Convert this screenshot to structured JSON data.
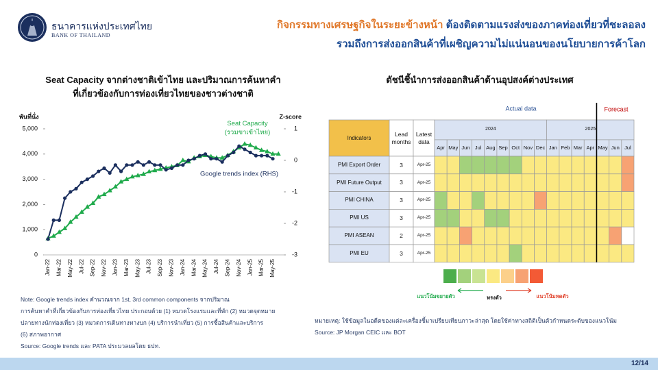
{
  "header": {
    "org_th": "ธนาคารแห่งประเทศไทย",
    "org_en": "BANK OF THAILAND",
    "title_orange": "กิจกรรมทางเศรษฐกิจในระยะข้างหน้า",
    "title_blue": "ต้องติดตามแรงส่งของภาคท่องเที่ยวที่ชะลอลง",
    "title_line2": "รวมถึงการส่งออกสินค้าที่เผชิญความไม่แน่นอนของนโยบายการค้าโลก"
  },
  "chart_data": [
    {
      "type": "line",
      "title": [
        "Seat Capacity จากต่างชาติเข้าไทย และปริมาณการค้นหาคำ",
        "ที่เกี่ยวข้องกับการท่องเที่ยวไทยของชาวต่างชาติ"
      ],
      "ylabel": "พันที่นั่ง",
      "y2label": "Z-score",
      "categories": [
        "Jan-22",
        null,
        "Mar-22",
        null,
        "May-22",
        null,
        "Jul-22",
        null,
        "Sep-22",
        null,
        "Nov-22",
        null,
        "Jan-23",
        null,
        "Mar-23",
        null,
        "May-23",
        null,
        "Jul-23",
        null,
        "Sep-23",
        null,
        "Nov-23",
        null,
        "Jan-24",
        null,
        "Mar-24",
        null,
        "May-24",
        null,
        "Jul-24",
        null,
        "Sep-24",
        null,
        "Nov-24",
        null,
        "Jan-25",
        null,
        "Mar-25",
        null,
        "May-25",
        null
      ],
      "series": [
        {
          "name": "Seat Capacity (รวมขาเข้าไทย)",
          "color": "#1faa4b",
          "marker": "triangle",
          "values": [
            650,
            750,
            900,
            1050,
            1300,
            1500,
            1700,
            1900,
            2050,
            2300,
            2400,
            2550,
            2700,
            2900,
            3000,
            3100,
            3150,
            3200,
            3300,
            3350,
            3400,
            3450,
            3500,
            3550,
            3750,
            3700,
            3850,
            3900,
            3950,
            3900,
            3850,
            3850,
            3950,
            4100,
            4250,
            4400,
            4350,
            4250,
            4150,
            4100,
            4000,
            4000
          ]
        },
        {
          "name": "Google trends index (RHS)",
          "color": "#1b2f5e",
          "marker": "circle",
          "axis": "y2",
          "values": [
            -2.5,
            -1.9,
            -1.9,
            -1.2,
            -1.0,
            -0.9,
            -0.7,
            -0.6,
            -0.5,
            -0.35,
            -0.25,
            -0.4,
            -0.15,
            -0.35,
            -0.15,
            -0.15,
            -0.05,
            -0.15,
            -0.05,
            -0.15,
            -0.15,
            -0.3,
            -0.25,
            -0.15,
            -0.15,
            0.0,
            0.05,
            0.15,
            0.2,
            0.05,
            0.05,
            -0.05,
            0.15,
            0.25,
            0.45,
            0.35,
            0.25,
            0.15,
            0.15,
            0.15,
            0.05,
            null
          ]
        }
      ],
      "ylim": [
        0,
        5000
      ],
      "yticks": [
        0,
        {
          "value": 1000,
          "label": "1,000"
        },
        {
          "value": 2000,
          "label": "2,000"
        },
        {
          "value": 3000,
          "label": "3,000"
        },
        {
          "value": 4000,
          "label": "4,000"
        },
        {
          "value": 5000,
          "label": "5,000"
        }
      ],
      "y2lim": [
        -3,
        1
      ],
      "y2ticks": [
        -3,
        -2,
        -1,
        0,
        1
      ],
      "notes": [
        "Note: Google trends index คำนวณจาก 1st, 3rd common components จากปริมาณ",
        "การค้นหาคำที่เกี่ยวข้องกับการท่องเที่ยวไทย ประกอบด้วย (1) หมวดโรงแรมและที่พัก (2) หมวดจุดหมาย",
        "ปลายทางนักท่องเที่ยว (3) หมวดการเดินทางทางบก (4) บริการนำเที่ยว (5) การซื้อสินค้าและบริการ",
        "(6) สภาพอากาศ",
        "Source: Google trends และ PATA ประมวลผลโดย ธปท."
      ]
    },
    {
      "type": "heatmap",
      "title": "ดัชนีชี้นำการส่งออกสินค้าด้านอุปสงค์ต่างประเทศ",
      "actual_label": "Actual data",
      "forecast_label": "Forecast",
      "actual_until": "Apr-25",
      "columns": [
        "Indicators",
        "Lead months",
        "Latest data"
      ],
      "years": [
        "2024",
        "2025"
      ],
      "months": [
        [
          "Apr",
          "May",
          "Jun",
          "Jul",
          "Aug",
          "Sep",
          "Oct",
          "Nov",
          "Dec"
        ],
        [
          "Jan",
          "Feb",
          "Mar",
          "Apr",
          "May",
          "Jun",
          "Jul"
        ]
      ],
      "level_colors": [
        "#4cae4c",
        "#a3d17c",
        "#c9e393",
        "#fbe982",
        "#fcd08a",
        "#f7a273",
        "#f35a35"
      ],
      "rows": [
        {
          "indicator": "PMI Export Order",
          "lead": 3,
          "latest": "Apr-25",
          "levels": [
            4,
            4,
            2,
            2,
            2,
            2,
            2,
            4,
            4,
            4,
            4,
            4,
            4,
            4,
            4,
            6
          ]
        },
        {
          "indicator": "PMI Future Output",
          "lead": 3,
          "latest": "Apr-25",
          "levels": [
            4,
            4,
            4,
            4,
            4,
            4,
            4,
            4,
            4,
            4,
            4,
            4,
            4,
            4,
            4,
            6
          ]
        },
        {
          "indicator": "PMI CHINA",
          "lead": 3,
          "latest": "Apr-25",
          "levels": [
            2,
            4,
            4,
            2,
            4,
            4,
            4,
            4,
            6,
            4,
            4,
            4,
            4,
            4,
            4,
            4
          ]
        },
        {
          "indicator": "PMI US",
          "lead": 3,
          "latest": "Apr-25",
          "levels": [
            2,
            2,
            4,
            4,
            2,
            2,
            4,
            4,
            4,
            4,
            4,
            4,
            4,
            4,
            4,
            4
          ]
        },
        {
          "indicator": "PMI ASEAN",
          "lead": 2,
          "latest": "Apr-25",
          "levels": [
            4,
            4,
            6,
            4,
            4,
            4,
            4,
            4,
            4,
            4,
            4,
            4,
            4,
            4,
            6,
            null
          ]
        },
        {
          "indicator": "PMI EU",
          "lead": 3,
          "latest": "Apr-25",
          "levels": [
            4,
            4,
            4,
            4,
            4,
            4,
            2,
            4,
            4,
            4,
            4,
            4,
            4,
            4,
            4,
            4
          ]
        }
      ],
      "legend": {
        "expand": "แนวโน้มขยายตัว",
        "stable": "ทรงตัว",
        "contract": "แนวโน้มหดตัว"
      },
      "notes": [
        "หมายเหตุ: ใช้ข้อมูลในอดีตของแต่ละเครื่องชี้มาเปรียบเทียบภาวะล่าสุด โดยใช้ค่าทางสถิติเป็นตัวกำหนดระดับของแนวโน้ม",
        "Source: JP Morgan CEIC และ BOT"
      ]
    }
  ],
  "page_number": "12/14"
}
